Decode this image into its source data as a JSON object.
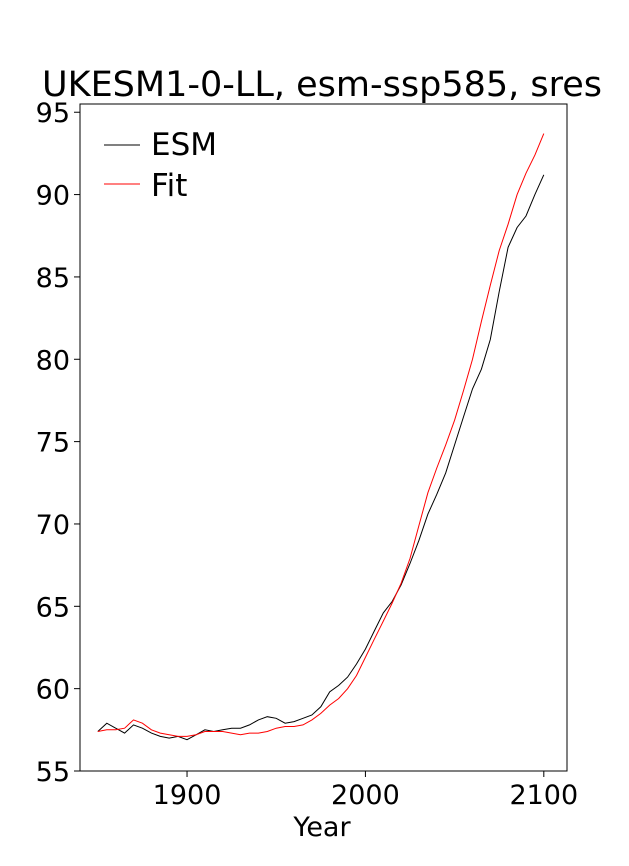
{
  "chart_data": {
    "type": "line",
    "title": "UKESM1-0-LL, esm-ssp585, sres",
    "xlabel": "Year",
    "ylabel": "",
    "xlim": [
      1840,
      2113
    ],
    "ylim": [
      55,
      95.5
    ],
    "xticks": [
      1900,
      2000,
      2100
    ],
    "yticks": [
      55,
      60,
      65,
      70,
      75,
      80,
      85,
      90,
      95
    ],
    "grid": false,
    "legend_position": "top-left",
    "series": [
      {
        "name": "ESM",
        "color": "#000000",
        "x": [
          1850,
          1855,
          1860,
          1865,
          1870,
          1875,
          1880,
          1885,
          1890,
          1895,
          1900,
          1905,
          1910,
          1915,
          1920,
          1925,
          1930,
          1935,
          1940,
          1945,
          1950,
          1955,
          1960,
          1965,
          1970,
          1975,
          1980,
          1985,
          1990,
          1995,
          2000,
          2005,
          2010,
          2015,
          2020,
          2025,
          2030,
          2035,
          2040,
          2045,
          2050,
          2055,
          2060,
          2065,
          2070,
          2075,
          2080,
          2085,
          2090,
          2095,
          2100
        ],
        "y": [
          57.4,
          57.9,
          57.6,
          57.3,
          57.8,
          57.6,
          57.3,
          57.1,
          57.0,
          57.1,
          56.9,
          57.2,
          57.5,
          57.4,
          57.5,
          57.6,
          57.6,
          57.8,
          58.1,
          58.3,
          58.2,
          57.9,
          58.0,
          58.2,
          58.4,
          58.9,
          59.8,
          60.2,
          60.7,
          61.5,
          62.4,
          63.5,
          64.6,
          65.3,
          66.3,
          67.6,
          69.0,
          70.6,
          71.8,
          73.1,
          74.8,
          76.5,
          78.2,
          79.4,
          81.2,
          84.1,
          86.8,
          88.0,
          88.7,
          90.0,
          91.2
        ]
      },
      {
        "name": "Fit",
        "color": "#ff0000",
        "x": [
          1850,
          1855,
          1860,
          1865,
          1870,
          1875,
          1880,
          1885,
          1890,
          1895,
          1900,
          1905,
          1910,
          1915,
          1920,
          1925,
          1930,
          1935,
          1940,
          1945,
          1950,
          1955,
          1960,
          1965,
          1970,
          1975,
          1980,
          1985,
          1990,
          1995,
          2000,
          2005,
          2010,
          2015,
          2020,
          2025,
          2030,
          2035,
          2040,
          2045,
          2050,
          2055,
          2060,
          2065,
          2070,
          2075,
          2080,
          2085,
          2090,
          2095,
          2100
        ],
        "y": [
          57.4,
          57.5,
          57.5,
          57.6,
          58.1,
          57.9,
          57.5,
          57.3,
          57.2,
          57.1,
          57.1,
          57.2,
          57.4,
          57.4,
          57.4,
          57.3,
          57.2,
          57.3,
          57.3,
          57.4,
          57.6,
          57.7,
          57.7,
          57.8,
          58.1,
          58.5,
          59.0,
          59.4,
          60.0,
          60.8,
          61.9,
          63.0,
          64.1,
          65.2,
          66.4,
          67.9,
          69.9,
          71.9,
          73.4,
          74.8,
          76.3,
          78.1,
          80.0,
          82.3,
          84.5,
          86.6,
          88.2,
          90.0,
          91.3,
          92.4,
          93.7
        ]
      }
    ]
  }
}
